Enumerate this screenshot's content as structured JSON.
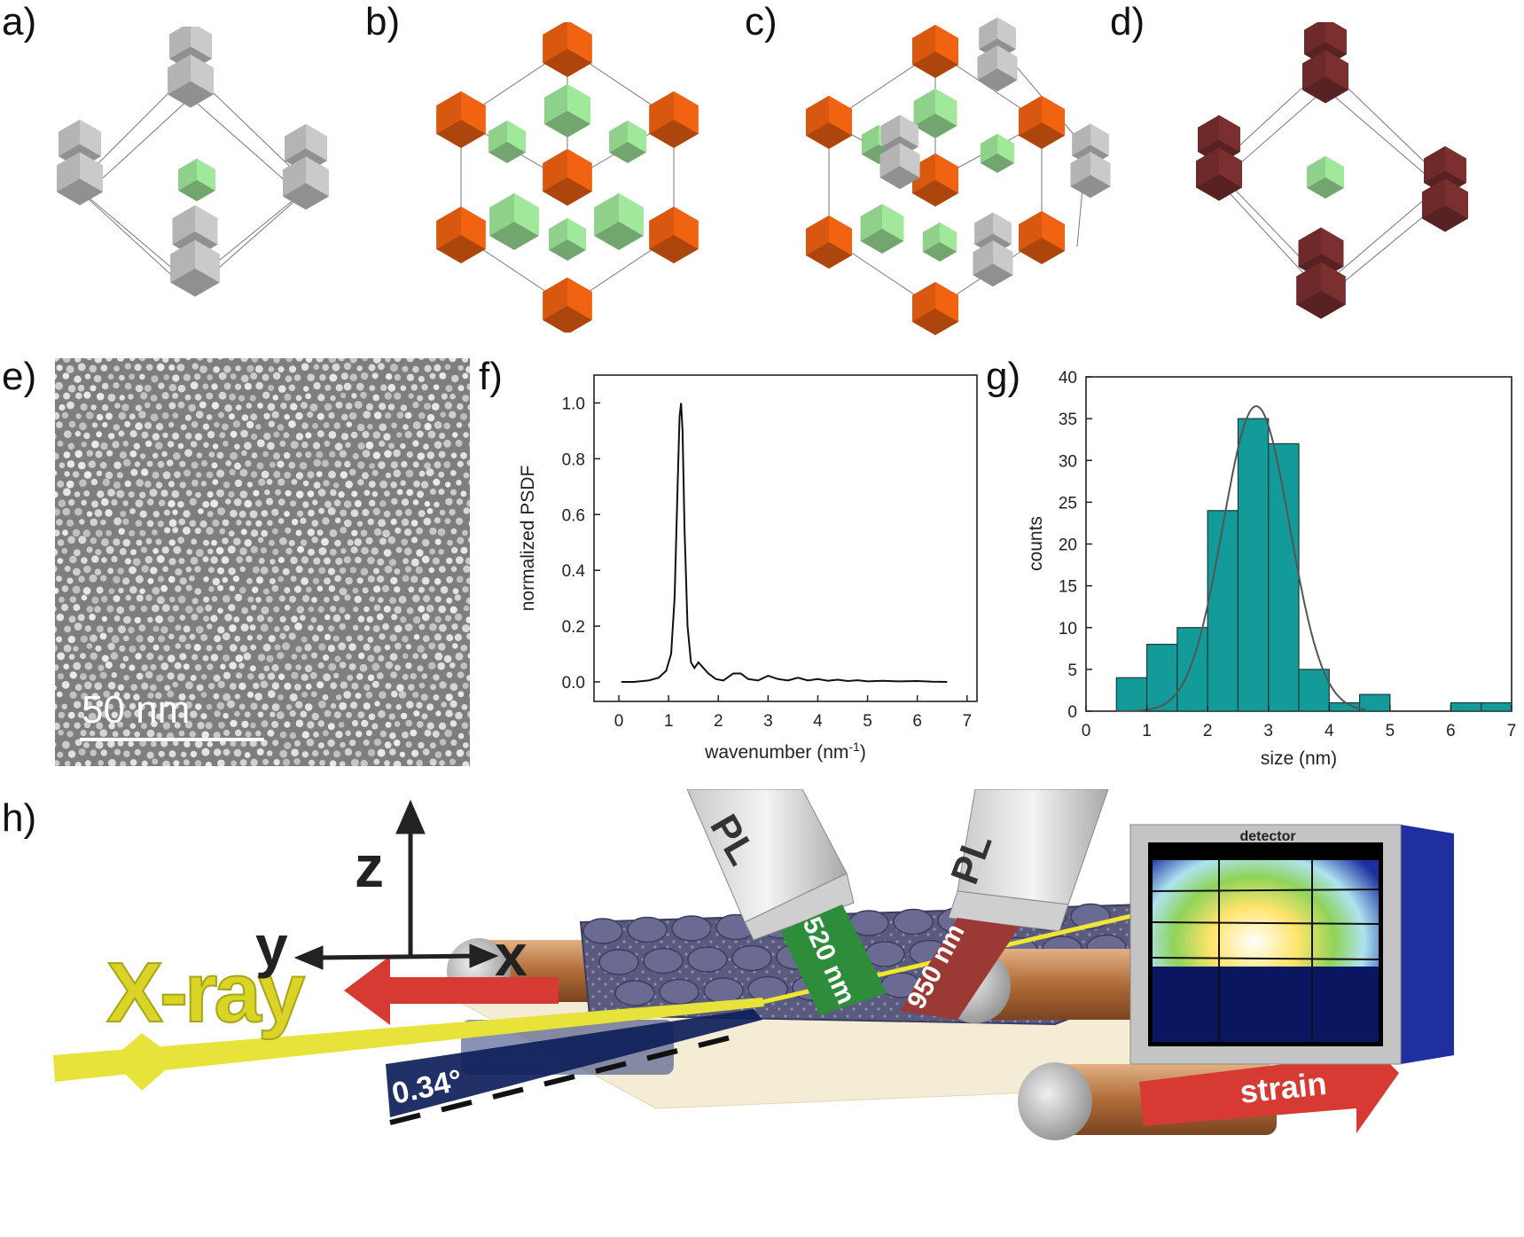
{
  "panels": {
    "a": "a)",
    "b": "b)",
    "c": "c)",
    "d": "d)",
    "e": "e)",
    "f": "f)",
    "g": "g)",
    "h": "h)"
  },
  "colors": {
    "gray": "#b4b4b4",
    "green": "#8fd08a",
    "orange": "#d8580f",
    "maroon": "#6e2a2a",
    "teal": "#129b98"
  },
  "tem": {
    "scale_label": "50 nm"
  },
  "chart_data": [
    {
      "id": "f",
      "type": "line",
      "xlabel": "wavenumber (nm",
      "xlabel_sup": "-1",
      "xlabel_tail": ")",
      "ylabel": "normalized PSDF",
      "xlim": [
        -0.5,
        7.2
      ],
      "ylim": [
        -0.07,
        1.1
      ],
      "xticks": [
        0,
        1,
        2,
        3,
        4,
        5,
        6,
        7
      ],
      "yticks": [
        0.0,
        0.2,
        0.4,
        0.6,
        0.8,
        1.0
      ],
      "ytick_labels": [
        "0.0",
        "0.2",
        "0.4",
        "0.6",
        "0.8",
        "1.0"
      ],
      "x": [
        0.05,
        0.3,
        0.6,
        0.8,
        0.95,
        1.05,
        1.12,
        1.18,
        1.22,
        1.25,
        1.28,
        1.32,
        1.38,
        1.45,
        1.52,
        1.6,
        1.7,
        1.8,
        1.95,
        2.1,
        2.3,
        2.45,
        2.6,
        2.8,
        3.0,
        3.2,
        3.4,
        3.6,
        3.8,
        4.0,
        4.2,
        4.4,
        4.6,
        4.8,
        5.0,
        5.3,
        5.6,
        6.0,
        6.3,
        6.6
      ],
      "y": [
        0.0,
        0.0,
        0.005,
        0.015,
        0.04,
        0.1,
        0.3,
        0.7,
        0.95,
        1.0,
        0.9,
        0.55,
        0.2,
        0.07,
        0.05,
        0.07,
        0.05,
        0.03,
        0.01,
        0.005,
        0.03,
        0.03,
        0.01,
        0.005,
        0.022,
        0.01,
        0.005,
        0.015,
        0.005,
        0.01,
        0.004,
        0.008,
        0.003,
        0.006,
        0.002,
        0.004,
        0.002,
        0.003,
        0.001,
        0.0
      ]
    },
    {
      "id": "g",
      "type": "bar",
      "xlabel": "size (nm)",
      "ylabel": "counts",
      "xlim": [
        0,
        7
      ],
      "ylim": [
        0,
        40
      ],
      "xticks": [
        0,
        1,
        2,
        3,
        4,
        5,
        6,
        7
      ],
      "yticks": [
        0,
        5,
        10,
        15,
        20,
        25,
        30,
        35,
        40
      ],
      "bin_width": 0.5,
      "bin_starts": [
        0.5,
        1.0,
        1.5,
        2.0,
        2.5,
        3.0,
        3.5,
        4.0,
        4.5,
        6.0,
        6.5
      ],
      "counts": [
        4,
        8,
        10,
        24,
        35,
        32,
        5,
        1,
        2,
        1,
        1
      ],
      "fit": {
        "type": "gaussian",
        "mean": 2.8,
        "sigma": 0.55,
        "peak": 36.5
      }
    }
  ],
  "schematic": {
    "axis_z": "z",
    "axis_y": "y",
    "axis_x": "x",
    "xray": "X-ray",
    "angle": "0.34°",
    "pl_left": "PL",
    "pl_right": "PL",
    "beam_left": "520 nm",
    "beam_right": "950 nm",
    "detector": "detector",
    "strain": "strain"
  }
}
